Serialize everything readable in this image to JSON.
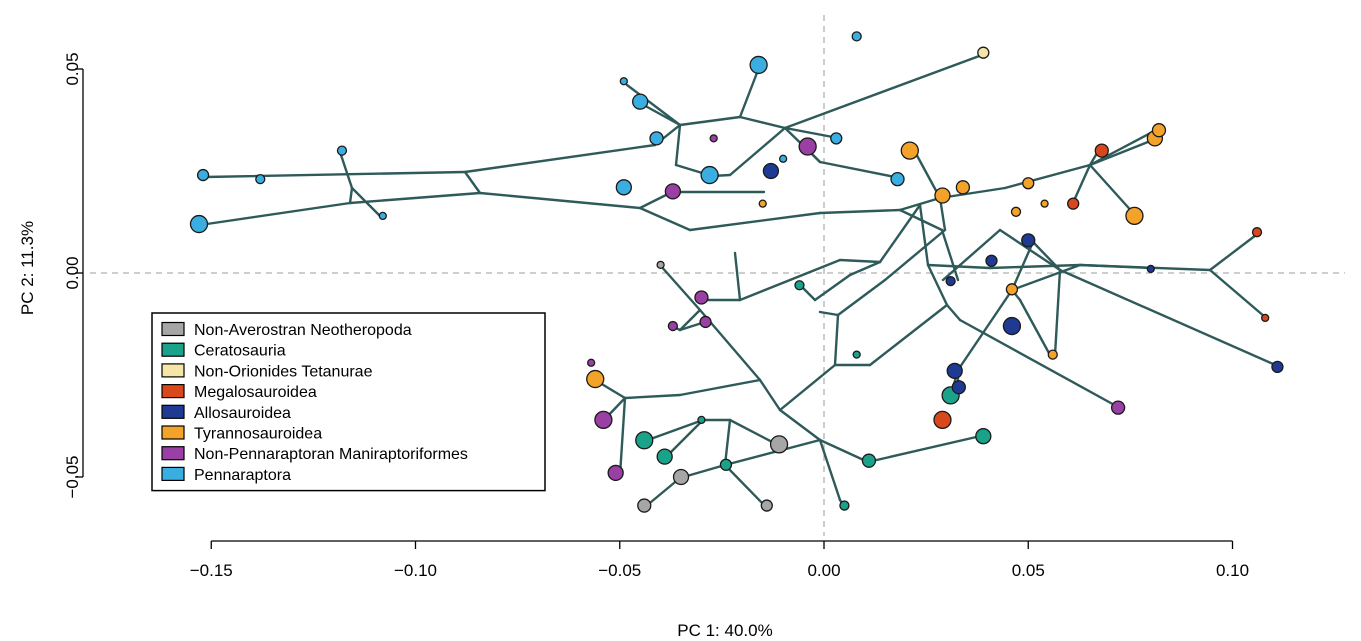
{
  "chart_data": {
    "type": "scatter",
    "xlabel": "PC 1: 40.0%",
    "ylabel": "PC 2: 11.3%",
    "xlim": [
      -0.165,
      0.13
    ],
    "ylim": [
      -0.063,
      0.062
    ],
    "x_ticks": [
      {
        "value": -0.15,
        "label": "−0.15"
      },
      {
        "value": -0.1,
        "label": "−0.10"
      },
      {
        "value": -0.05,
        "label": "−0.05"
      },
      {
        "value": 0.0,
        "label": "0.00"
      },
      {
        "value": 0.05,
        "label": "0.05"
      },
      {
        "value": 0.1,
        "label": "0.10"
      }
    ],
    "y_ticks": [
      {
        "value": 0.05,
        "label": "0.05"
      },
      {
        "value": 0.0,
        "label": "0.00"
      },
      {
        "value": -0.05,
        "label": "−0.05"
      }
    ],
    "zero_lines": true,
    "legend_position": "bottom-left",
    "series": [
      {
        "name": "Non-Averostran Neotheropoda",
        "color": "#a6a6a6",
        "points": [
          [
            -0.04,
            0.002
          ],
          [
            -0.011,
            -0.042
          ],
          [
            -0.035,
            -0.05
          ],
          [
            -0.044,
            -0.057
          ],
          [
            -0.014,
            -0.057
          ]
        ]
      },
      {
        "name": "Ceratosauria",
        "color": "#1aa38a",
        "points": [
          [
            -0.006,
            -0.003
          ],
          [
            0.008,
            -0.02
          ],
          [
            0.031,
            -0.03
          ],
          [
            0.039,
            -0.04
          ],
          [
            0.011,
            -0.046
          ],
          [
            -0.024,
            -0.047
          ],
          [
            0.005,
            -0.057
          ],
          [
            -0.03,
            -0.036
          ],
          [
            -0.044,
            -0.041
          ],
          [
            -0.039,
            -0.045
          ]
        ]
      },
      {
        "name": "Non-Orionides Tetanurae",
        "color": "#f5e6a8",
        "points": [
          [
            0.039,
            0.054
          ]
        ]
      },
      {
        "name": "Megalosauroidea",
        "color": "#d9481c",
        "points": [
          [
            0.068,
            0.03
          ],
          [
            0.061,
            0.017
          ],
          [
            0.106,
            0.01
          ],
          [
            0.108,
            -0.011
          ],
          [
            0.029,
            -0.036
          ]
        ]
      },
      {
        "name": "Allosauroidea",
        "color": "#1f3a93",
        "points": [
          [
            -0.013,
            0.025
          ],
          [
            0.05,
            0.008
          ],
          [
            0.041,
            0.003
          ],
          [
            0.031,
            -0.002
          ],
          [
            0.08,
            0.001
          ],
          [
            0.046,
            -0.013
          ],
          [
            0.032,
            -0.024
          ],
          [
            0.033,
            -0.028
          ],
          [
            0.111,
            -0.023
          ]
        ]
      },
      {
        "name": "Tyrannosauroidea",
        "color": "#f3a32a",
        "points": [
          [
            0.021,
            0.03
          ],
          [
            0.029,
            0.019
          ],
          [
            0.034,
            0.021
          ],
          [
            0.05,
            0.022
          ],
          [
            0.047,
            0.015
          ],
          [
            0.054,
            0.017
          ],
          [
            0.076,
            0.014
          ],
          [
            0.081,
            0.033
          ],
          [
            0.082,
            0.035
          ],
          [
            0.046,
            -0.004
          ],
          [
            0.056,
            -0.02
          ],
          [
            -0.015,
            0.017
          ],
          [
            -0.056,
            -0.026
          ]
        ]
      },
      {
        "name": "Non-Pennaraptoran Maniraptoriformes",
        "color": "#9a3fa3",
        "points": [
          [
            -0.027,
            0.033
          ],
          [
            -0.004,
            0.031
          ],
          [
            -0.037,
            0.02
          ],
          [
            -0.03,
            -0.006
          ],
          [
            -0.029,
            -0.012
          ],
          [
            -0.037,
            -0.013
          ],
          [
            -0.057,
            -0.022
          ],
          [
            -0.054,
            -0.036
          ],
          [
            -0.051,
            -0.049
          ],
          [
            0.072,
            -0.033
          ]
        ]
      },
      {
        "name": "Pennaraptora",
        "color": "#3aaee0",
        "points": [
          [
            0.008,
            0.058
          ],
          [
            -0.049,
            0.047
          ],
          [
            -0.016,
            0.051
          ],
          [
            -0.045,
            0.042
          ],
          [
            -0.041,
            0.033
          ],
          [
            0.003,
            0.033
          ],
          [
            -0.118,
            0.03
          ],
          [
            -0.01,
            0.028
          ],
          [
            -0.028,
            0.024
          ],
          [
            -0.049,
            0.021
          ],
          [
            0.018,
            0.023
          ],
          [
            -0.152,
            0.024
          ],
          [
            -0.138,
            0.023
          ],
          [
            -0.108,
            0.014
          ],
          [
            -0.153,
            0.012
          ]
        ]
      }
    ]
  }
}
